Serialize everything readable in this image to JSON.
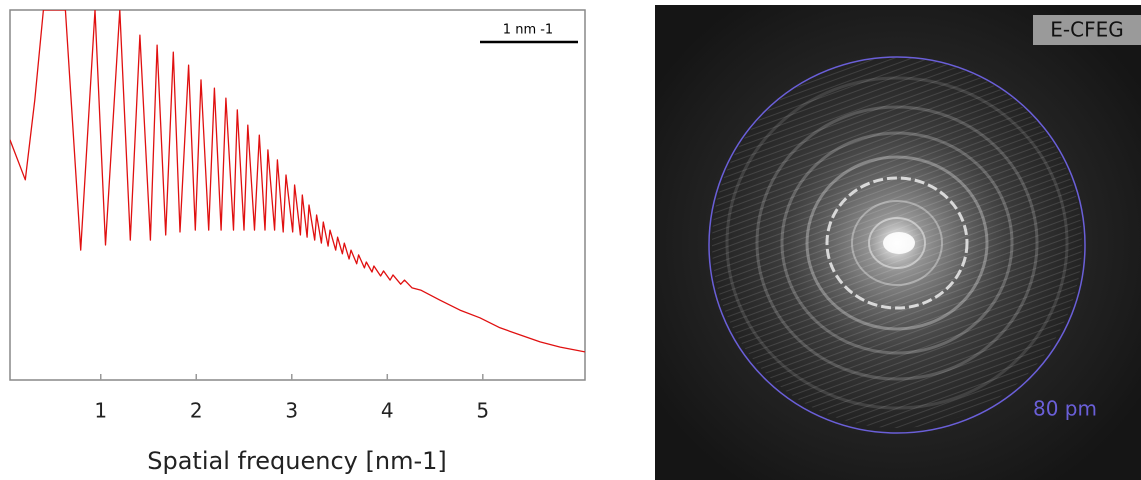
{
  "chart_data": {
    "type": "line",
    "xlabel": "Spatial frequency [nm-1]",
    "annotation": "1 nm -1",
    "xlim": [
      0.05,
      6.07
    ],
    "ylim": [
      0,
      100
    ],
    "xticks": [
      1,
      2,
      3,
      4,
      5
    ],
    "x": [
      0.05,
      0.21,
      0.31,
      0.4,
      0.63,
      0.79,
      0.94,
      1.05,
      1.2,
      1.31,
      1.41,
      1.52,
      1.59,
      1.68,
      1.76,
      1.83,
      1.92,
      1.99,
      2.05,
      2.13,
      2.19,
      2.26,
      2.31,
      2.39,
      2.43,
      2.5,
      2.54,
      2.61,
      2.66,
      2.72,
      2.75,
      2.82,
      2.85,
      2.91,
      2.94,
      3.01,
      3.03,
      3.09,
      3.11,
      3.16,
      3.18,
      3.24,
      3.26,
      3.31,
      3.33,
      3.38,
      3.4,
      3.46,
      3.48,
      3.53,
      3.55,
      3.6,
      3.62,
      3.68,
      3.7,
      3.76,
      3.78,
      3.84,
      3.86,
      3.93,
      3.96,
      4.03,
      4.06,
      4.14,
      4.18,
      4.26,
      4.35,
      4.55,
      4.76,
      4.97,
      5.18,
      5.39,
      5.6,
      5.81,
      6.07
    ],
    "series": [
      {
        "color": "#e01010",
        "values": [
          64.9,
          54.1,
          75.7,
          100,
          100,
          35.1,
          100,
          36.5,
          100,
          37.8,
          93.2,
          37.8,
          90.5,
          39.2,
          88.6,
          40.0,
          85.1,
          40.5,
          81.1,
          40.5,
          78.9,
          40.5,
          76.2,
          40.5,
          73.0,
          40.5,
          68.9,
          40.5,
          66.2,
          40.5,
          62.2,
          40.5,
          59.5,
          40.0,
          55.4,
          40.0,
          52.7,
          39.2,
          50.0,
          38.6,
          47.3,
          37.8,
          44.6,
          37.0,
          42.7,
          36.2,
          40.5,
          35.1,
          38.6,
          34.1,
          37.0,
          32.7,
          35.1,
          31.4,
          33.8,
          30.3,
          31.9,
          29.2,
          30.8,
          28.1,
          29.5,
          27.0,
          28.4,
          25.9,
          27.0,
          24.9,
          24.3,
          21.6,
          18.9,
          16.8,
          14.1,
          12.2,
          10.3,
          8.9,
          7.6
        ]
      }
    ]
  },
  "image": {
    "label": "E-CFEG",
    "circle_label": "80 pm"
  }
}
